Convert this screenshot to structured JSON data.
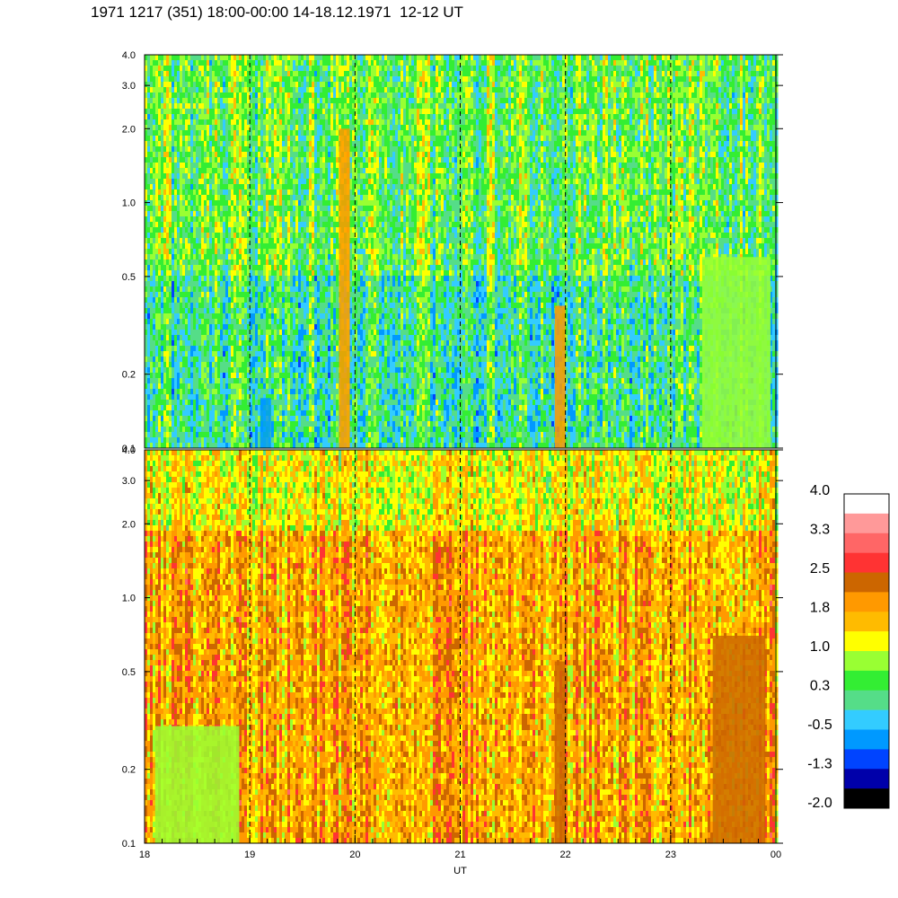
{
  "title": "1971 1217 (351) 18:00-00:00 14-18.12.1971  12-12 UT",
  "chart_data": {
    "type": "heatmap",
    "title": "1971 1217 (351) 18:00-00:00 14-18.12.1971  12-12 UT",
    "xlabel": "UT",
    "x_tick_labels": [
      "18",
      "19",
      "20",
      "21",
      "22",
      "23",
      "00"
    ],
    "x_range_hours": [
      18,
      24
    ],
    "dashed_vertical_lines_at": [
      19,
      20,
      21,
      22,
      23
    ],
    "panels": [
      {
        "name": "upper",
        "y_scale": "log",
        "ylim": [
          0.1,
          4.0
        ],
        "y_ticks": [
          0.1,
          0.2,
          0.5,
          1.0,
          2.0,
          3.0,
          4.0
        ],
        "y_tick_labels": [
          "0.1",
          "0.2",
          "0.5",
          "1.0",
          "2.0",
          "3.0",
          "4.0"
        ],
        "dominant_level": 0.3,
        "features": [
          {
            "x": 21.95,
            "y_range": [
              0.1,
              0.38
            ],
            "level": 1.8
          },
          {
            "x": 19.9,
            "y_range": [
              0.1,
              2.0
            ],
            "level": 1.8
          },
          {
            "x": 19.15,
            "y_range": [
              0.1,
              0.16
            ],
            "level": -0.5
          },
          {
            "x_range": [
              23.3,
              23.95
            ],
            "y_range": [
              0.1,
              0.6
            ],
            "level": 1.0
          }
        ]
      },
      {
        "name": "lower",
        "y_scale": "log",
        "ylim": [
          0.1,
          4.0
        ],
        "y_ticks": [
          0.1,
          0.2,
          0.5,
          1.0,
          2.0,
          3.0,
          4.0
        ],
        "y_tick_labels": [
          "0.1",
          "0.2",
          "0.5",
          "1.0",
          "2.0",
          "3.0",
          "4.0"
        ],
        "dominant_level": 1.8,
        "features": [
          {
            "x": 21.95,
            "y_range": [
              0.1,
              0.55
            ],
            "level": 2.5
          },
          {
            "x_range": [
              23.4,
              23.9
            ],
            "y_range": [
              0.1,
              0.7
            ],
            "level": 2.5
          },
          {
            "x_range": [
              18.1,
              18.9
            ],
            "y_range": [
              0.1,
              0.3
            ],
            "level": 1.0
          }
        ]
      }
    ],
    "colorbar": {
      "tick_labels": [
        "4.0",
        "3.3",
        "2.5",
        "1.8",
        "1.0",
        "0.3",
        "-0.5",
        "-1.3",
        "-2.0"
      ],
      "colors": [
        "#ffffff",
        "#ff9999",
        "#ff6666",
        "#ff3333",
        "#cc6600",
        "#ff9900",
        "#ffbb00",
        "#ffff00",
        "#99ff33",
        "#33ee33",
        "#55dd88",
        "#33ccff",
        "#0099ff",
        "#0044ff",
        "#0000aa",
        "#000000"
      ]
    }
  }
}
